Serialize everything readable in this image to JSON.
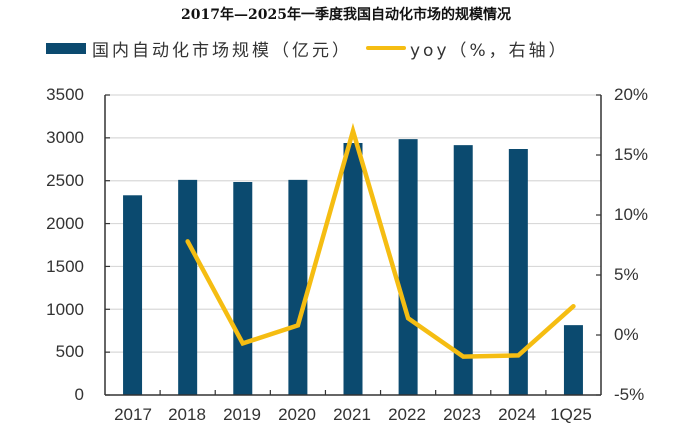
{
  "title": "2017年—2025年一季度我国自动化市场的规模情况",
  "legend": {
    "bar_label": "国内自动化市场规模（亿元）",
    "line_label": "yoy（%，右轴）"
  },
  "colors": {
    "bar": "#0b4a6f",
    "line": "#f5bd12",
    "grid": "#d9d9d9",
    "axis": "#333333"
  },
  "axes": {
    "left_ticks": [
      "3500",
      "3000",
      "2500",
      "2000",
      "1500",
      "1000",
      "500",
      "0"
    ],
    "right_ticks": [
      "20%",
      "15%",
      "10%",
      "5%",
      "0%",
      "-5%"
    ],
    "x_ticks": [
      "2017",
      "2018",
      "2019",
      "2020",
      "2021",
      "2022",
      "2023",
      "2024",
      "1Q25"
    ]
  },
  "chart_data": {
    "type": "bar",
    "title": "2017年—2025年一季度我国自动化市场的规模情况",
    "categories": [
      "2017",
      "2018",
      "2019",
      "2020",
      "2021",
      "2022",
      "2023",
      "2024",
      "1Q25"
    ],
    "series": [
      {
        "name": "国内自动化市场规模（亿元）",
        "type": "bar",
        "axis": "left",
        "values": [
          2330,
          2510,
          2485,
          2510,
          2940,
          2985,
          2915,
          2870,
          815
        ]
      },
      {
        "name": "yoy（%，右轴）",
        "type": "line",
        "axis": "right",
        "values": [
          null,
          7.8,
          -0.7,
          0.8,
          17.0,
          1.4,
          -1.8,
          -1.7,
          2.4
        ]
      }
    ],
    "xlabel": "",
    "ylabel": "",
    "ylim": [
      0,
      3500
    ],
    "y2lim": [
      -5,
      20
    ],
    "y_ticks": [
      0,
      500,
      1000,
      1500,
      2000,
      2500,
      3000,
      3500
    ],
    "y2_ticks": [
      -5,
      0,
      5,
      10,
      15,
      20
    ],
    "grid": true,
    "legend_position": "top"
  }
}
